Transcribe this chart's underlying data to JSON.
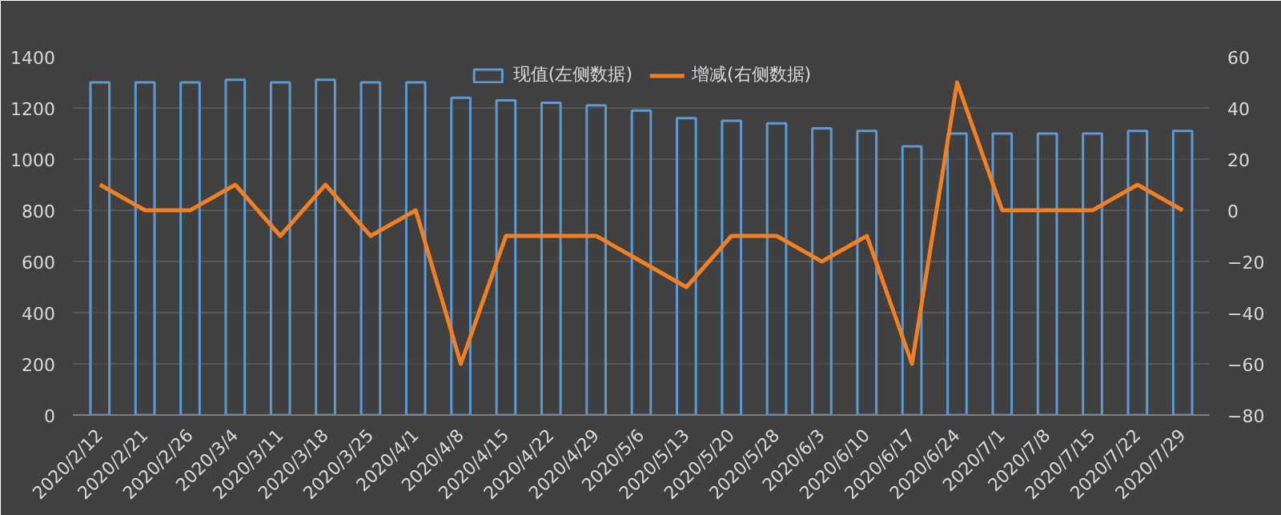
{
  "chart_data": {
    "type": "bar",
    "categories": [
      "2020/2/12",
      "2020/2/21",
      "2020/2/26",
      "2020/3/4",
      "2020/3/11",
      "2020/3/18",
      "2020/3/25",
      "2020/4/1",
      "2020/4/8",
      "2020/4/15",
      "2020/4/22",
      "2020/4/29",
      "2020/5/6",
      "2020/5/13",
      "2020/5/20",
      "2020/5/28",
      "2020/6/3",
      "2020/6/10",
      "2020/6/17",
      "2020/6/24",
      "2020/7/1",
      "2020/7/8",
      "2020/7/15",
      "2020/7/22",
      "2020/7/29"
    ],
    "series": [
      {
        "name": "现值(左侧数据)",
        "color": "#5b9bd5",
        "values": [
          1300,
          1300,
          1300,
          1310,
          1300,
          1310,
          1300,
          1300,
          1240,
          1230,
          1220,
          1210,
          1190,
          1160,
          1150,
          1140,
          1120,
          1110,
          1050,
          1100,
          1100,
          1100,
          1100,
          1110,
          1110
        ]
      },
      {
        "name": "增减(右侧数据)",
        "type": "line",
        "axis": "y2",
        "color": "#f28022",
        "values": [
          10,
          0,
          0,
          10,
          -10,
          10,
          -10,
          0,
          -60,
          -10,
          -10,
          -10,
          -20,
          -30,
          -10,
          -10,
          -20,
          -10,
          -60,
          50,
          0,
          0,
          0,
          10,
          0
        ]
      }
    ],
    "ylim": [
      0,
      1400
    ],
    "yticks": [
      0,
      200,
      400,
      600,
      800,
      1000,
      1200,
      1400
    ],
    "y2lim": [
      -80,
      60
    ],
    "y2ticks": [
      -80,
      -60,
      -40,
      -20,
      0,
      20,
      40,
      60
    ],
    "grid": "y",
    "legend": "top"
  }
}
